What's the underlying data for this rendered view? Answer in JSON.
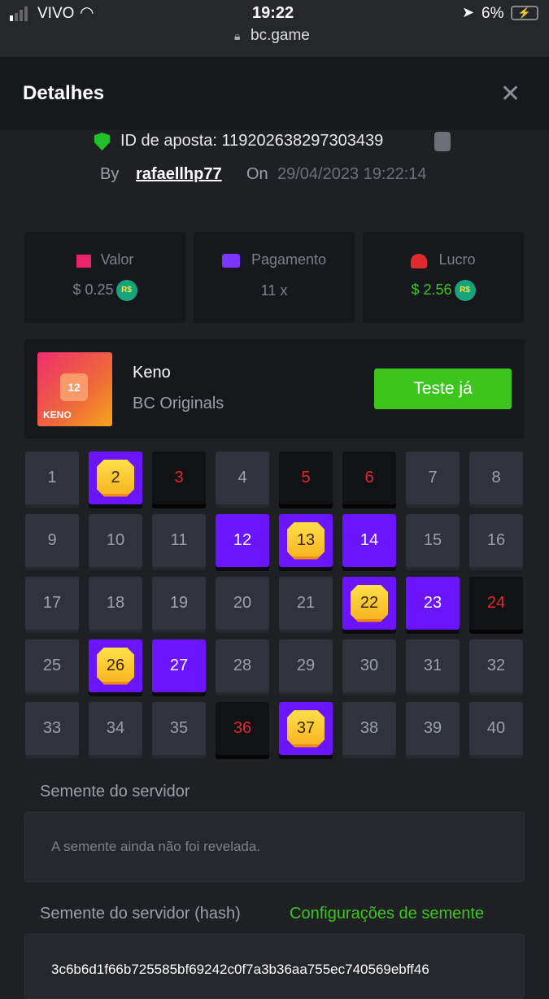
{
  "status_bar": {
    "carrier": "VIVO",
    "time": "19:22",
    "battery": "6%",
    "url": "bc.game"
  },
  "header": {
    "title": "Detalhes",
    "close_icon": "close-icon"
  },
  "bet": {
    "id_label": "ID de aposta: 119202638297303439",
    "by_label": "By",
    "user": "rafaellhp77",
    "on_label": "On",
    "date": "29/04/2023 19:22:14"
  },
  "stats": [
    {
      "label": "Valor",
      "value": "$ 0.25",
      "currency": "R$",
      "icon": "coins-icon",
      "color": "#e8246a"
    },
    {
      "label": "Pagamento",
      "value": "11 x",
      "icon": "card-icon",
      "color": "#7a35ff"
    },
    {
      "label": "Lucro",
      "value": "$ 2.56",
      "currency": "R$",
      "icon": "profit-hand-icon",
      "color": "#e0282f",
      "value_color": "#3dc51d"
    }
  ],
  "game": {
    "name": "Keno",
    "provider": "BC Originals",
    "thumb_label": "KENO",
    "thumb_number": "12",
    "button": "Teste já"
  },
  "board": {
    "numbers": [
      1,
      2,
      3,
      4,
      5,
      6,
      7,
      8,
      9,
      10,
      11,
      12,
      13,
      14,
      15,
      16,
      17,
      18,
      19,
      20,
      21,
      22,
      23,
      24,
      25,
      26,
      27,
      28,
      29,
      30,
      31,
      32,
      33,
      34,
      35,
      36,
      37,
      38,
      39,
      40
    ],
    "hits": [
      2,
      13,
      22,
      26,
      37
    ],
    "selected_miss": [
      12,
      14,
      23,
      27
    ],
    "drawn_not_selected": [
      3,
      5,
      6,
      24,
      36
    ]
  },
  "server_seed": {
    "label": "Semente do servidor",
    "value": "A semente ainda não foi revelada."
  },
  "server_hash": {
    "label": "Semente do servidor (hash)",
    "link": "Configurações de semente",
    "value": "3c6b6d1f66b725585bf69242c0f7a3b36aa755ec740569ebff46"
  },
  "colors": {
    "accent_green": "#3dc51d",
    "selected": "#6a14ff",
    "drawn_red": "#e0282f"
  }
}
